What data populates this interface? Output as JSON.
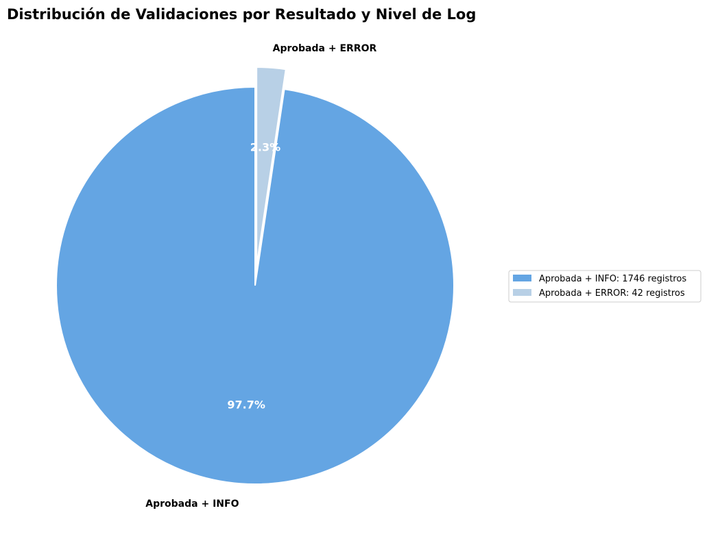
{
  "chart_data": {
    "type": "pie",
    "title": "Distribución de Validaciones por Resultado y Nivel de Log",
    "slices": [
      {
        "label": "Aprobada + INFO",
        "value": 1746,
        "percent_label": "97.7%",
        "legend_label": "Aprobada + INFO: 1746 registros",
        "color": "#64a5e3"
      },
      {
        "label": "Aprobada + ERROR",
        "value": 42,
        "percent_label": "2.3%",
        "legend_label": "Aprobada + ERROR: 42 registros",
        "color": "#b8d0e6"
      }
    ],
    "exploded_slice": "Aprobada + ERROR",
    "legend_position": "right",
    "slice_edge_color": "#ffffff"
  }
}
